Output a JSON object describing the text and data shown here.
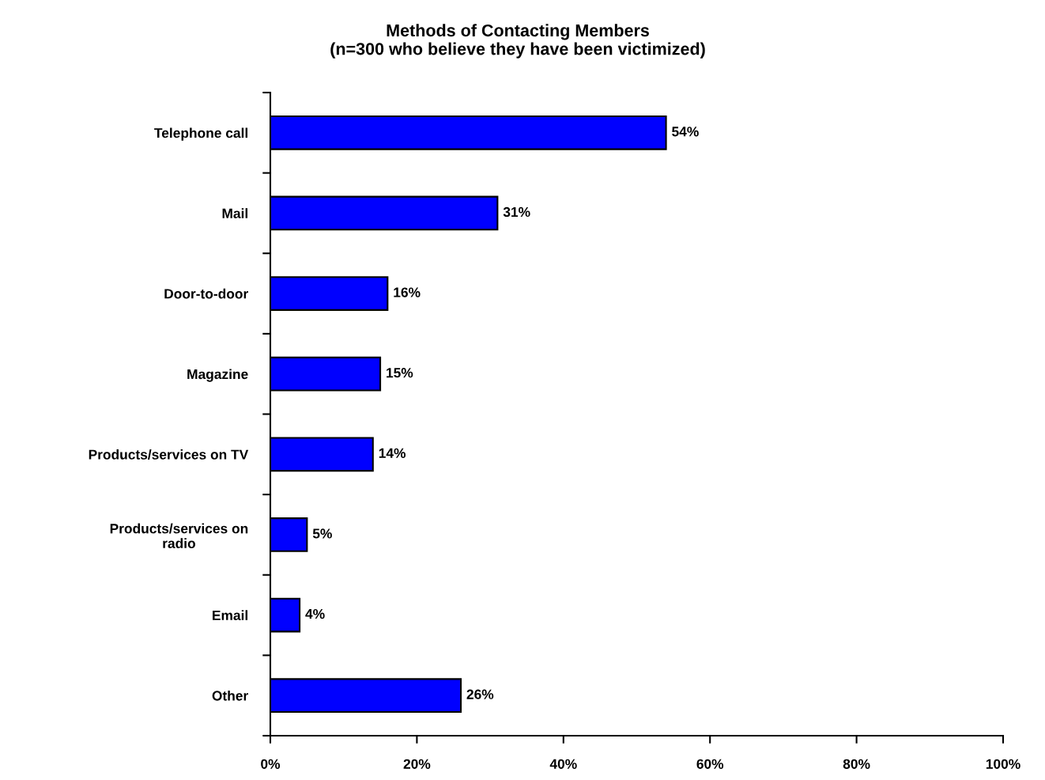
{
  "chart_data": {
    "type": "bar",
    "orientation": "horizontal",
    "title": "Methods of Contacting Members\n(n=300 who believe they have been victimized)",
    "categories": [
      "Telephone call",
      "Mail",
      "Door-to-door",
      "Magazine",
      "Products/services on TV",
      "Products/services on\nradio",
      "Email",
      "Other"
    ],
    "values": [
      54,
      31,
      16,
      15,
      14,
      5,
      4,
      26
    ],
    "value_labels": [
      "54%",
      "31%",
      "16%",
      "15%",
      "14%",
      "5%",
      "4%",
      "26%"
    ],
    "color": "#0000ff",
    "xlim": [
      0,
      100
    ],
    "xticks": [
      {
        "value": 0,
        "label": "0%"
      },
      {
        "value": 20,
        "label": "20%"
      },
      {
        "value": 40,
        "label": "40%"
      },
      {
        "value": 60,
        "label": "60%"
      },
      {
        "value": 80,
        "label": "80%"
      },
      {
        "value": 100,
        "label": "100%"
      }
    ],
    "grid": false,
    "legend": false
  }
}
